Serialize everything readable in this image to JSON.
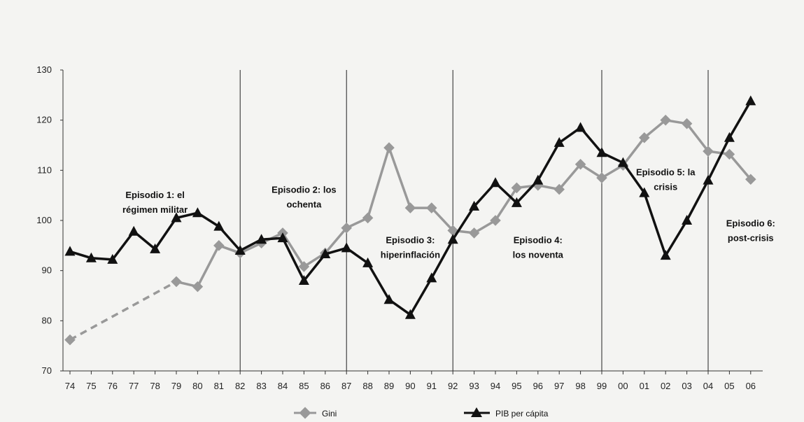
{
  "chart_data": {
    "type": "line",
    "categories": [
      "74",
      "75",
      "76",
      "77",
      "78",
      "79",
      "80",
      "81",
      "82",
      "83",
      "84",
      "85",
      "86",
      "87",
      "88",
      "89",
      "90",
      "91",
      "92",
      "93",
      "94",
      "95",
      "96",
      "97",
      "98",
      "99",
      "00",
      "01",
      "02",
      "03",
      "04",
      "05",
      "06"
    ],
    "ylim": [
      70,
      130
    ],
    "yticks": [
      70,
      80,
      90,
      100,
      110,
      120,
      130
    ],
    "grid": false,
    "legend_position": "bottom",
    "series": [
      {
        "name": "Gini",
        "color": "#999999",
        "marker": "diamond",
        "values": [
          76.2,
          null,
          null,
          null,
          null,
          87.8,
          86.8,
          95,
          93.5,
          95.5,
          97.5,
          90.8,
          93.5,
          98.5,
          100.5,
          114.5,
          102.5,
          102.5,
          98,
          97.5,
          100,
          106.5,
          107,
          106.2,
          111.2,
          108.5,
          111,
          116.5,
          120,
          119.3,
          113.8,
          113.2,
          108.2
        ],
        "dashed_gap": {
          "from": "74",
          "to": "79"
        }
      },
      {
        "name": "PIB per cápita",
        "color": "#111111",
        "marker": "triangle",
        "values": [
          93.8,
          92.5,
          92.2,
          97.8,
          94.3,
          100.5,
          101.5,
          98.8,
          94,
          96.2,
          96.5,
          88,
          93.3,
          94.5,
          91.5,
          84.2,
          81.2,
          88.5,
          96.2,
          102.8,
          107.5,
          103.5,
          108,
          115.5,
          118.5,
          113.5,
          111.5,
          105.5,
          93,
          100,
          108,
          116.5,
          123.8
        ]
      }
    ],
    "dividers": [
      "82",
      "87",
      "92",
      "99",
      "04"
    ],
    "annotations": [
      {
        "lines": [
          "Episodio 1: el",
          "régimen militar"
        ],
        "cx": "78",
        "y": 104.5
      },
      {
        "lines": [
          "Episodio 2: los",
          "ochenta"
        ],
        "cx": "85",
        "y": 105.5
      },
      {
        "lines": [
          "Episodio 3:",
          "hiperinflación"
        ],
        "cx": "90",
        "y": 95.5
      },
      {
        "lines": [
          "Episodio 4:",
          "los noventa"
        ],
        "cx": "96",
        "y": 95.5
      },
      {
        "lines": [
          "Episodio 5: la",
          "crisis"
        ],
        "cx": "02",
        "y": 109
      },
      {
        "lines": [
          "Episodio 6:",
          "post-crisis"
        ],
        "cx": "06",
        "y": 98.8
      }
    ]
  }
}
